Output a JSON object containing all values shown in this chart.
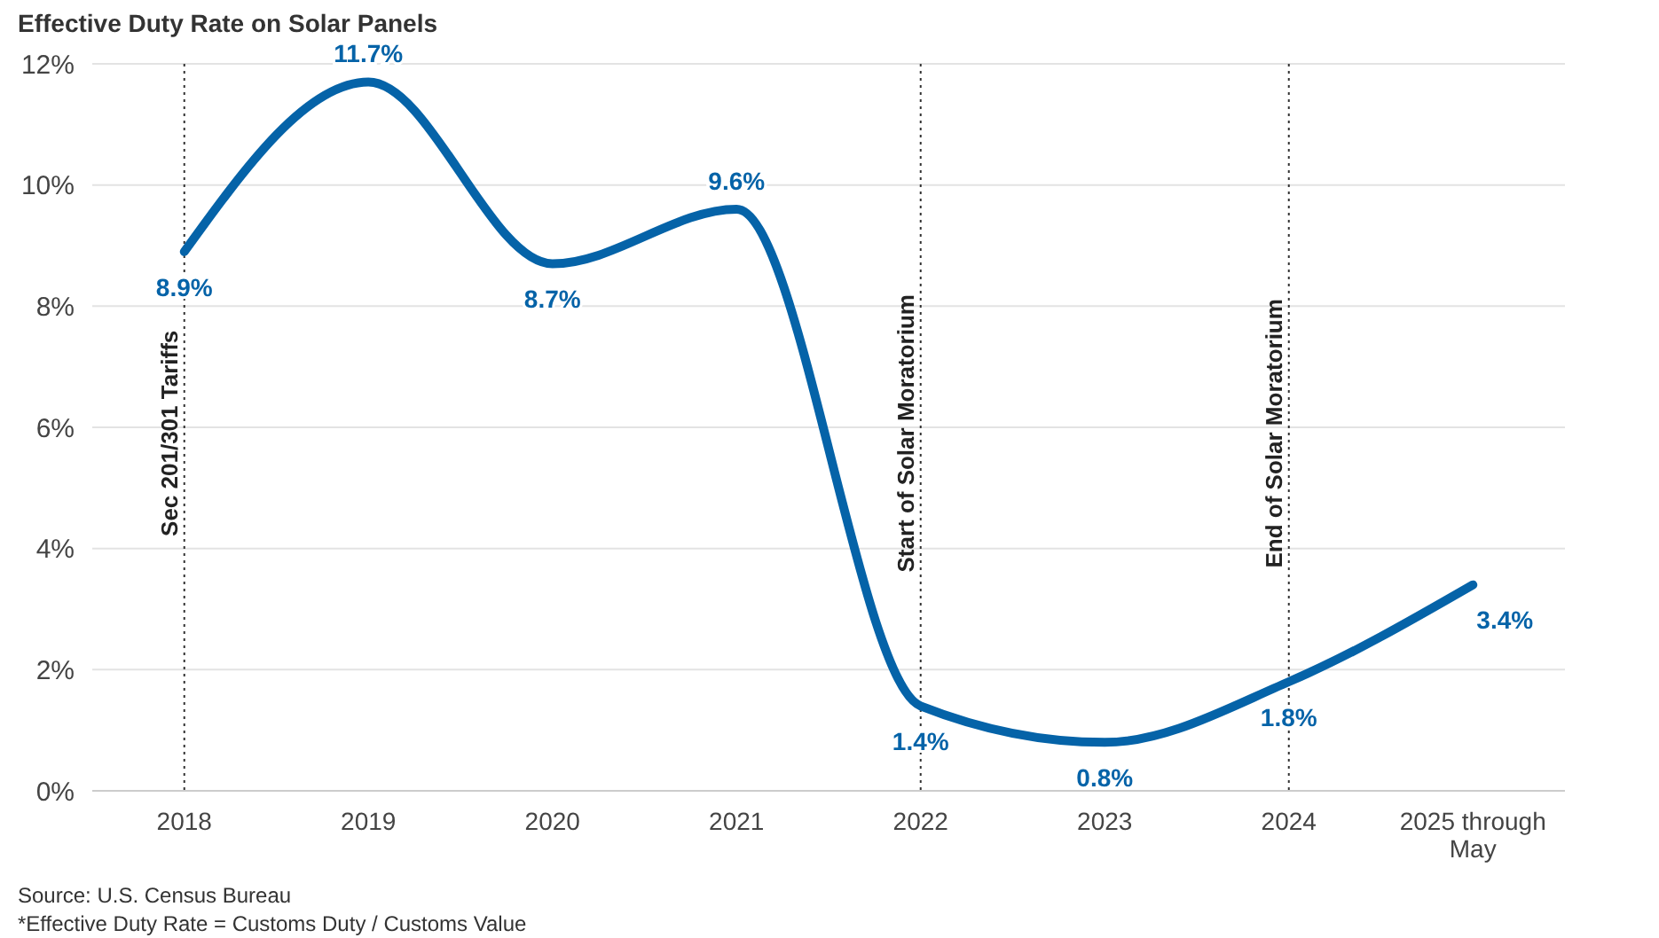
{
  "chart_data": {
    "type": "line",
    "title": "Effective Duty Rate on Solar Panels",
    "categories": [
      "2018",
      "2019",
      "2020",
      "2021",
      "2022",
      "2023",
      "2024",
      "2025 through May"
    ],
    "series": [
      {
        "color": "#0563a8",
        "values": [
          8.9,
          11.7,
          8.7,
          9.6,
          1.4,
          0.8,
          1.8,
          3.4
        ]
      }
    ],
    "ylim": [
      0,
      12
    ],
    "yticks": [
      {
        "value": 0,
        "label": "0%"
      },
      {
        "value": 2,
        "label": "2%"
      },
      {
        "value": 4,
        "label": "4%"
      },
      {
        "value": 6,
        "label": "6%"
      },
      {
        "value": 8,
        "label": "8%"
      },
      {
        "value": 10,
        "label": "10%"
      },
      {
        "value": 12,
        "label": "12%"
      }
    ],
    "value_labels": [
      "8.9%",
      "11.7%",
      "8.7%",
      "9.6%",
      "1.4%",
      "0.8%",
      "1.8%",
      "3.4%"
    ],
    "grid": "y",
    "marker": "none",
    "line_style": "solid",
    "ref_lines": [
      {
        "axis": "x",
        "value": "2018",
        "label": "Sec 201/301 Tariffs",
        "line_style": "dotted",
        "color": "#333333"
      },
      {
        "axis": "x",
        "value": "2022",
        "label": "Start of Solar Moratorium",
        "line_style": "dotted",
        "color": "#333333"
      },
      {
        "axis": "x",
        "value": "2024",
        "label": "End of Solar Moratorium",
        "line_style": "dotted",
        "color": "#333333"
      }
    ],
    "annotations": [
      "Source: U.S. Census Bureau",
      "*Effective Duty Rate = Customs Duty / Customs Value"
    ]
  }
}
